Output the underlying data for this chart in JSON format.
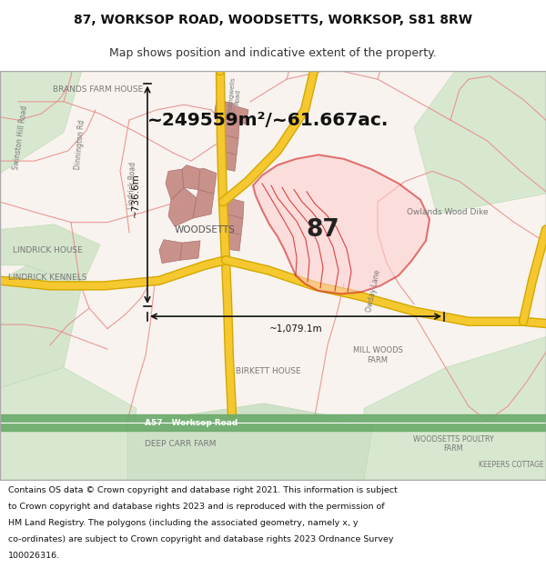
{
  "title_line1": "87, WORKSOP ROAD, WOODSETTS, WORKSOP, S81 8RW",
  "title_line2": "Map shows position and indicative extent of the property.",
  "area_text": "~249559m²/~61.667ac.",
  "dim_vertical": "~736.6m",
  "dim_horizontal": "~1,079.1m",
  "property_number": "87",
  "footer_lines": [
    "Contains OS data © Crown copyright and database right 2021. This information is subject",
    "to Crown copyright and database rights 2023 and is reproduced with the permission of",
    "HM Land Registry. The polygons (including the associated geometry, namely x, y",
    "co-ordinates) are subject to Crown copyright and database rights 2023 Ordnance Survey",
    "100026316."
  ],
  "map_bg_color": "#f8f3ee",
  "road_color_major": "#f5c830",
  "road_color_edge": "#d4a800",
  "road_color_green": "#6aaa6a",
  "property_outline_color": "#cc1111",
  "property_fill_color": "#ffcccc",
  "building_fill_color": "#c8928a",
  "building_edge_color": "#aa7070",
  "pink_road_color": "#e88888",
  "green_field_color": "#d8e8d0",
  "annotation_color": "#111111",
  "label_color": "#777777"
}
